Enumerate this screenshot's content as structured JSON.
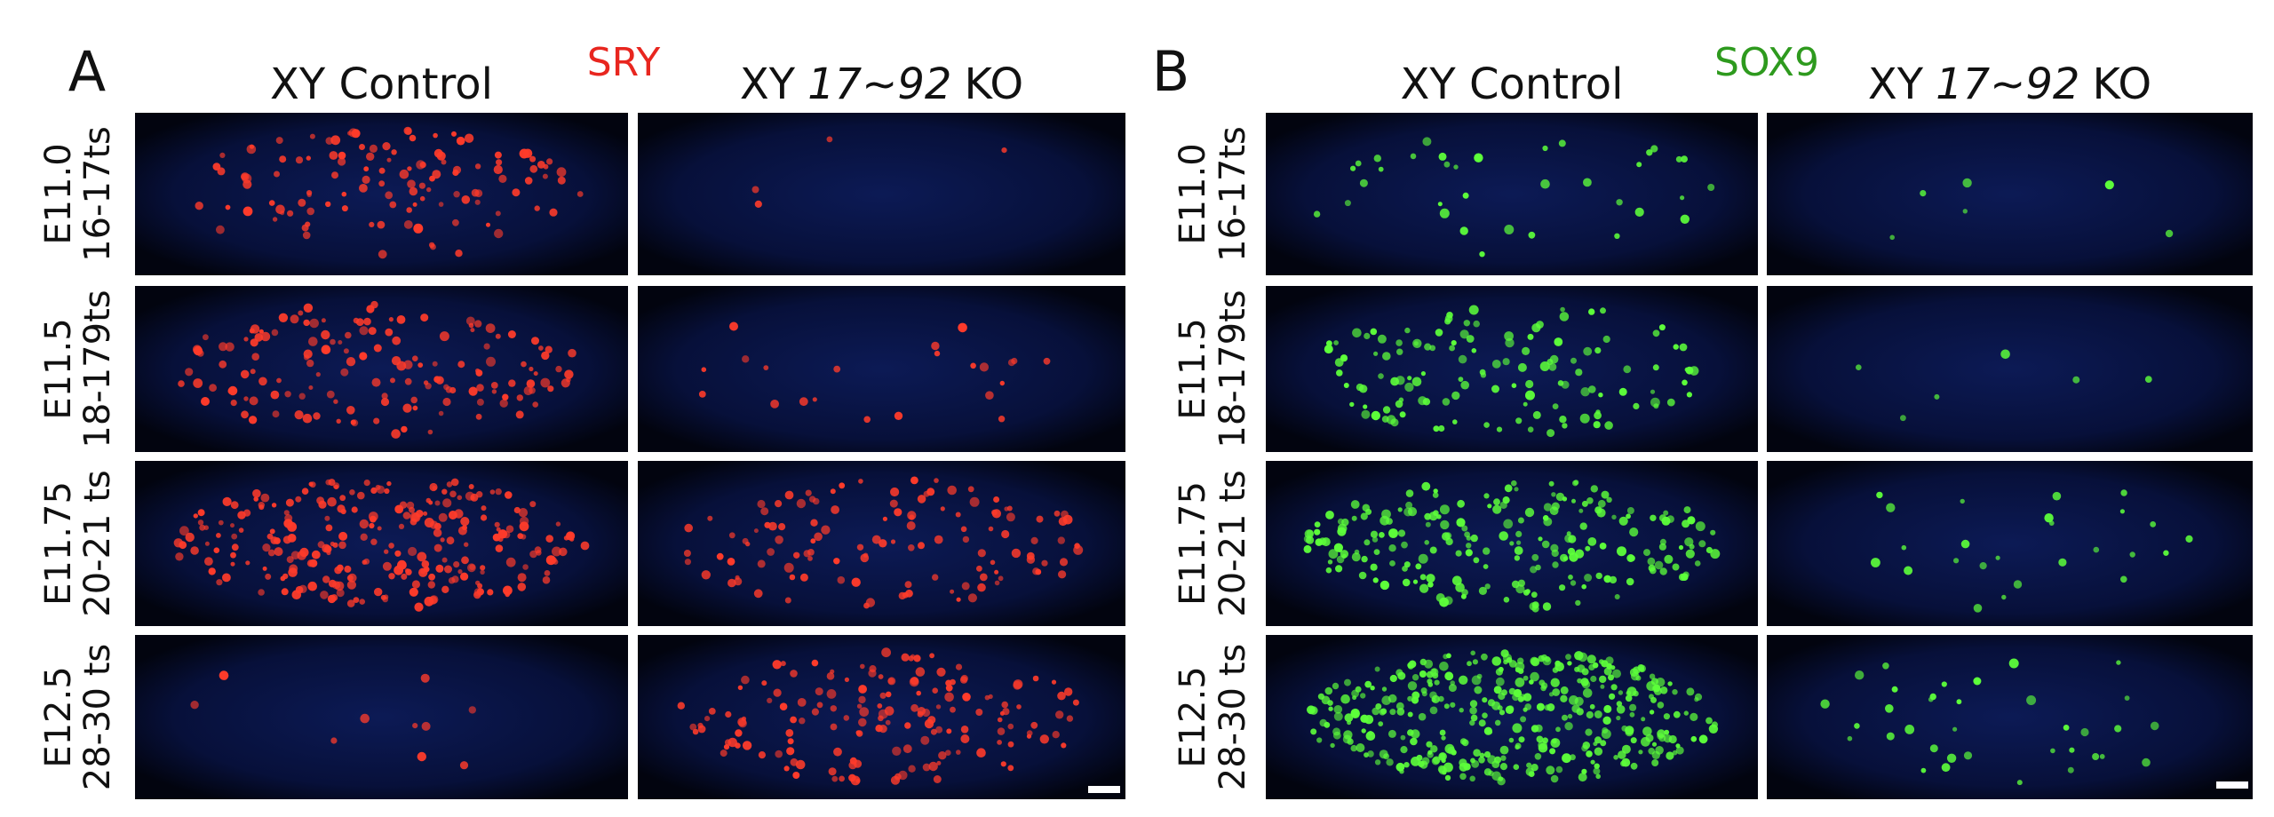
{
  "panels": [
    {
      "label": "A",
      "marker": {
        "text": "SRY",
        "color": "#e8261f"
      },
      "column_headers": [
        {
          "text": "XY Control"
        },
        {
          "prefix": "XY",
          "italic": "17~92",
          "suffix": "KO"
        }
      ],
      "rows": [
        {
          "stage": "E11.0",
          "somites": "16-17ts"
        },
        {
          "stage": "E11.5",
          "somites": "18-179ts"
        },
        {
          "stage": "E11.75",
          "somites": "20-21 ts"
        },
        {
          "stage": "E12.5",
          "somites": "28-30 ts"
        }
      ]
    },
    {
      "label": "B",
      "marker": {
        "text": "SOX9",
        "color": "#2e9a1e"
      },
      "column_headers": [
        {
          "text": "XY Control"
        },
        {
          "prefix": "XY",
          "italic": "17~92",
          "suffix": "KO"
        }
      ],
      "rows": [
        {
          "stage": "E11.0",
          "somites": "16-17ts"
        },
        {
          "stage": "E11.5",
          "somites": "18-179ts"
        },
        {
          "stage": "E11.75",
          "somites": "20-21 ts"
        },
        {
          "stage": "E12.5",
          "somites": "28-30 ts"
        }
      ]
    }
  ]
}
